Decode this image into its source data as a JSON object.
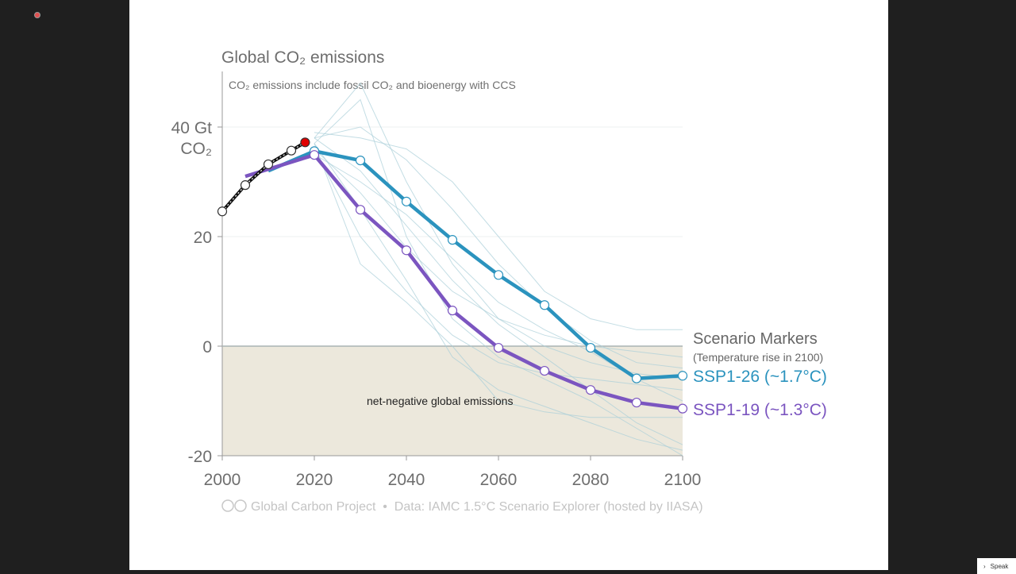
{
  "colors": {
    "ssp126": "#2b93be",
    "ssp119": "#7b55c0",
    "historical": "#111111",
    "latest": "#e00000",
    "scenario_lines": "#a9cfd8",
    "net_negative_fill": "#ece8dc"
  },
  "chart_data": {
    "type": "line",
    "title": "Global CO₂ emissions",
    "subtitle": "CO₂ emissions include fossil CO₂ and bioenergy with CCS",
    "ylabel_line1": "40 Gt",
    "ylabel_line2": "CO₂",
    "xlim": [
      2000,
      2100
    ],
    "ylim": [
      -20,
      50
    ],
    "xticks": [
      2000,
      2020,
      2040,
      2060,
      2080,
      2100
    ],
    "yticks": [
      {
        "value": 40,
        "label": "40 Gt"
      },
      {
        "value": 20,
        "label": "20"
      },
      {
        "value": 0,
        "label": "0"
      },
      {
        "value": -20,
        "label": "-20"
      }
    ],
    "annotation": "net-negative global emissions",
    "legend_title": "Scenario Markers",
    "legend_subtitle": "(Temperature rise in 2100)",
    "grid": true,
    "series": [
      {
        "name": "SSP1-26 (~1.7°C)",
        "key": "ssp126",
        "x": [
          2010,
          2020,
          2030,
          2040,
          2050,
          2060,
          2070,
          2080,
          2090,
          2100
        ],
        "y": [
          32,
          35.6,
          33.9,
          26.4,
          19.4,
          13.0,
          7.5,
          -0.3,
          -5.9,
          -5.4
        ]
      },
      {
        "name": "SSP1-19 (~1.3°C)",
        "key": "ssp119",
        "x": [
          2005,
          2020,
          2030,
          2040,
          2050,
          2060,
          2070,
          2080,
          2090,
          2100
        ],
        "y": [
          31,
          34.9,
          24.9,
          17.5,
          6.5,
          -0.3,
          -4.5,
          -8.0,
          -10.3,
          -11.4
        ]
      },
      {
        "key": "historical",
        "x": [
          2000,
          2005,
          2010,
          2015,
          2018
        ],
        "y": [
          24.6,
          29.4,
          33.2,
          35.7,
          37.2
        ]
      }
    ],
    "other_scenarios": [
      [
        [
          2020,
          38
        ],
        [
          2030,
          48
        ],
        [
          2040,
          30
        ],
        [
          2050,
          15
        ],
        [
          2060,
          5
        ],
        [
          2070,
          0
        ],
        [
          2080,
          -3
        ],
        [
          2090,
          -5
        ],
        [
          2100,
          -6
        ]
      ],
      [
        [
          2020,
          37
        ],
        [
          2030,
          45
        ],
        [
          2040,
          20
        ],
        [
          2050,
          5
        ],
        [
          2060,
          -2
        ],
        [
          2070,
          -6
        ],
        [
          2080,
          -10
        ],
        [
          2090,
          -15
        ],
        [
          2100,
          -20
        ]
      ],
      [
        [
          2020,
          39
        ],
        [
          2030,
          38
        ],
        [
          2040,
          36
        ],
        [
          2050,
          30
        ],
        [
          2060,
          20
        ],
        [
          2070,
          10
        ],
        [
          2080,
          5
        ],
        [
          2090,
          3
        ],
        [
          2100,
          3
        ]
      ],
      [
        [
          2020,
          36
        ],
        [
          2030,
          20
        ],
        [
          2040,
          10
        ],
        [
          2050,
          2
        ],
        [
          2060,
          -3
        ],
        [
          2070,
          -5
        ],
        [
          2080,
          -6
        ],
        [
          2090,
          -7
        ],
        [
          2100,
          -8
        ]
      ],
      [
        [
          2020,
          38
        ],
        [
          2030,
          32
        ],
        [
          2040,
          22
        ],
        [
          2050,
          12
        ],
        [
          2060,
          4
        ],
        [
          2070,
          -2
        ],
        [
          2080,
          -8
        ],
        [
          2090,
          -14
        ],
        [
          2100,
          -18
        ]
      ],
      [
        [
          2020,
          37
        ],
        [
          2030,
          15
        ],
        [
          2040,
          8
        ],
        [
          2050,
          0
        ],
        [
          2060,
          -10
        ],
        [
          2070,
          -12
        ],
        [
          2080,
          -13
        ],
        [
          2090,
          -13
        ],
        [
          2100,
          -13
        ]
      ],
      [
        [
          2020,
          36
        ],
        [
          2030,
          28
        ],
        [
          2040,
          18
        ],
        [
          2050,
          10
        ],
        [
          2060,
          5
        ],
        [
          2070,
          2
        ],
        [
          2080,
          0
        ],
        [
          2090,
          -1
        ],
        [
          2100,
          -2
        ]
      ],
      [
        [
          2020,
          38
        ],
        [
          2030,
          40
        ],
        [
          2040,
          34
        ],
        [
          2050,
          25
        ],
        [
          2060,
          15
        ],
        [
          2070,
          7
        ],
        [
          2080,
          1
        ],
        [
          2090,
          -3
        ],
        [
          2100,
          -4
        ]
      ],
      [
        [
          2020,
          37
        ],
        [
          2030,
          25
        ],
        [
          2040,
          12
        ],
        [
          2050,
          -2
        ],
        [
          2060,
          -8
        ],
        [
          2070,
          -11
        ],
        [
          2080,
          -14
        ],
        [
          2090,
          -17
        ],
        [
          2100,
          -19
        ]
      ],
      [
        [
          2020,
          35
        ],
        [
          2030,
          30
        ],
        [
          2040,
          24
        ],
        [
          2050,
          16
        ],
        [
          2060,
          8
        ],
        [
          2070,
          3
        ],
        [
          2080,
          -1
        ],
        [
          2090,
          -6
        ],
        [
          2100,
          -10
        ]
      ]
    ],
    "footer": "Global Carbon Project  •  Data: IAMC 1.5°C Scenario Explorer (hosted by IIASA)"
  },
  "ui": {
    "speaker_button": "Speak"
  }
}
